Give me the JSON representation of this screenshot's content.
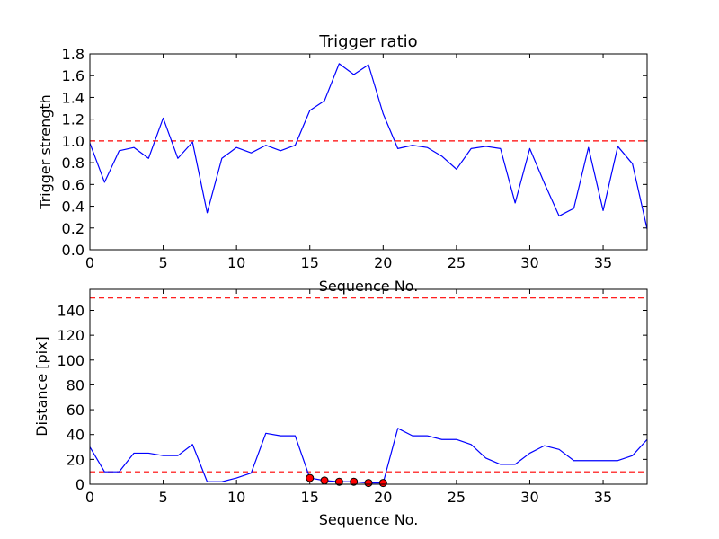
{
  "chart_data": [
    {
      "type": "line",
      "title": "Trigger ratio",
      "xlabel": "Sequence No.",
      "ylabel": "Trigger strength",
      "xlim": [
        0,
        38
      ],
      "ylim": [
        0,
        1.8
      ],
      "xticks": [
        0,
        5,
        10,
        15,
        20,
        25,
        30,
        35
      ],
      "xtick_labels": [
        "0",
        "5",
        "10",
        "15",
        "20",
        "25",
        "30",
        "35"
      ],
      "yticks": [
        0,
        0.2,
        0.4,
        0.6,
        0.8,
        1.0,
        1.2,
        1.4,
        1.6,
        1.8
      ],
      "ytick_labels": [
        "0.0",
        "0.2",
        "0.4",
        "0.6",
        "0.8",
        "1.0",
        "1.2",
        "1.4",
        "1.6",
        "1.8"
      ],
      "series": [
        {
          "name": "trigger strength",
          "color": "#0000ff",
          "x": [
            0,
            1,
            2,
            3,
            4,
            5,
            6,
            7,
            8,
            9,
            10,
            11,
            12,
            13,
            14,
            15,
            16,
            17,
            18,
            19,
            20,
            21,
            22,
            23,
            24,
            25,
            26,
            27,
            28,
            29,
            30,
            31,
            32,
            33,
            34,
            35,
            36,
            37,
            38
          ],
          "y": [
            0.98,
            0.62,
            0.91,
            0.94,
            0.84,
            1.21,
            0.84,
            0.99,
            0.34,
            0.84,
            0.94,
            0.89,
            0.96,
            0.91,
            0.96,
            1.28,
            1.37,
            1.71,
            1.61,
            1.7,
            1.25,
            0.93,
            0.96,
            0.94,
            0.86,
            0.74,
            0.93,
            0.95,
            0.93,
            0.43,
            0.93,
            0.61,
            0.31,
            0.38,
            0.94,
            0.36,
            0.95,
            0.79,
            0.19
          ]
        }
      ],
      "hlines": [
        {
          "y": 1.0,
          "color": "#ff0000",
          "style": "dashed"
        }
      ]
    },
    {
      "type": "line",
      "title": "",
      "xlabel": "Sequence No.",
      "ylabel": "Distance [pix]",
      "xlim": [
        0,
        38
      ],
      "ylim": [
        0,
        157
      ],
      "xticks": [
        0,
        5,
        10,
        15,
        20,
        25,
        30,
        35
      ],
      "xtick_labels": [
        "0",
        "5",
        "10",
        "15",
        "20",
        "25",
        "30",
        "35"
      ],
      "yticks": [
        0,
        20,
        40,
        60,
        80,
        100,
        120,
        140
      ],
      "ytick_labels": [
        "0",
        "20",
        "40",
        "60",
        "80",
        "100",
        "120",
        "140"
      ],
      "series": [
        {
          "name": "distance",
          "color": "#0000ff",
          "x": [
            0,
            1,
            2,
            3,
            4,
            5,
            6,
            7,
            8,
            9,
            10,
            11,
            12,
            13,
            14,
            15,
            16,
            17,
            18,
            19,
            20,
            21,
            22,
            23,
            24,
            25,
            26,
            27,
            28,
            29,
            30,
            31,
            32,
            33,
            34,
            35,
            36,
            37,
            38
          ],
          "y": [
            30,
            10,
            10,
            25,
            25,
            23,
            23,
            32,
            2,
            2,
            5,
            9,
            41,
            39,
            39,
            5,
            3,
            2,
            2,
            1,
            1,
            45,
            39,
            39,
            36,
            36,
            32,
            21,
            16,
            16,
            25,
            31,
            28,
            19,
            19,
            19,
            19,
            23,
            36
          ]
        }
      ],
      "markers": {
        "color": "#ff0000",
        "x": [
          15,
          16,
          17,
          18,
          19,
          20
        ],
        "y": [
          5,
          3,
          2,
          2,
          1,
          1
        ]
      },
      "hlines": [
        {
          "y": 150,
          "color": "#ff0000",
          "style": "dashed"
        },
        {
          "y": 10,
          "color": "#ff0000",
          "style": "dashed"
        }
      ]
    }
  ]
}
